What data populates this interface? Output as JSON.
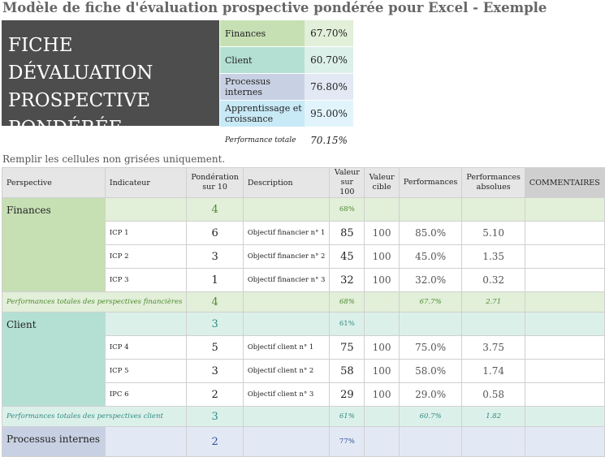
{
  "title": "Modèle de fiche d'évaluation prospective pondérée pour Excel - Exemple",
  "box_title": "FICHE DÉVALUATION PROSPECTIVE PONDÉRÉE",
  "summary": {
    "rows": [
      {
        "label": "Finances",
        "value": "67.70%"
      },
      {
        "label": "Client",
        "value": "60.70%"
      },
      {
        "label": "Processus internes",
        "value": "76.80%"
      },
      {
        "label": "Apprentissage et croissance",
        "value": "95.00%"
      }
    ],
    "total_label": "Performance totale",
    "total_value": "70.15%"
  },
  "instruction": "Remplir les cellules non grisées uniquement.",
  "table": {
    "headers": [
      "Perspective",
      "Indicateur",
      "Pondération sur 10",
      "Description",
      "Valeur sur 100",
      "Valeur cible",
      "Performances",
      "Performances absolues",
      "COMMENTAIRES"
    ],
    "sections": [
      {
        "name": "Finances",
        "weight": 4,
        "value": "68%",
        "rows": [
          {
            "indicator": "ICP 1",
            "weight": 6,
            "description": "Objectif financier n° 1",
            "value": 85,
            "target": 100,
            "performance": "85.0%",
            "absolute": "5.10"
          },
          {
            "indicator": "ICP 2",
            "weight": 3,
            "description": "Objectif financier n° 2",
            "value": 45,
            "target": 100,
            "performance": "45.0%",
            "absolute": "1.35"
          },
          {
            "indicator": "ICP 3",
            "weight": 1,
            "description": "Objectif financier n° 3",
            "value": 32,
            "target": 100,
            "performance": "32.0%",
            "absolute": "0.32"
          }
        ],
        "total": {
          "label": "Performances totales des perspectives financières",
          "weight": 4,
          "value": "68%",
          "performance": "67.7%",
          "absolute": "2.71"
        }
      },
      {
        "name": "Client",
        "weight": 3,
        "value": "61%",
        "rows": [
          {
            "indicator": "ICP 4",
            "weight": 5,
            "description": "Objectif client n° 1",
            "value": 75,
            "target": 100,
            "performance": "75.0%",
            "absolute": "3.75"
          },
          {
            "indicator": "ICP 5",
            "weight": 3,
            "description": "Objectif client n° 2",
            "value": 58,
            "target": 100,
            "performance": "58.0%",
            "absolute": "1.74"
          },
          {
            "indicator": "IPC 6",
            "weight": 2,
            "description": "Objectif client n° 3",
            "value": 29,
            "target": 100,
            "performance": "29.0%",
            "absolute": "0.58"
          }
        ],
        "total": {
          "label": "Performances totales des perspectives client",
          "weight": 3,
          "value": "61%",
          "performance": "60.7%",
          "absolute": "1.82"
        }
      },
      {
        "name": "Processus internes",
        "weight": 2,
        "value": "77%",
        "rows": []
      }
    ]
  }
}
